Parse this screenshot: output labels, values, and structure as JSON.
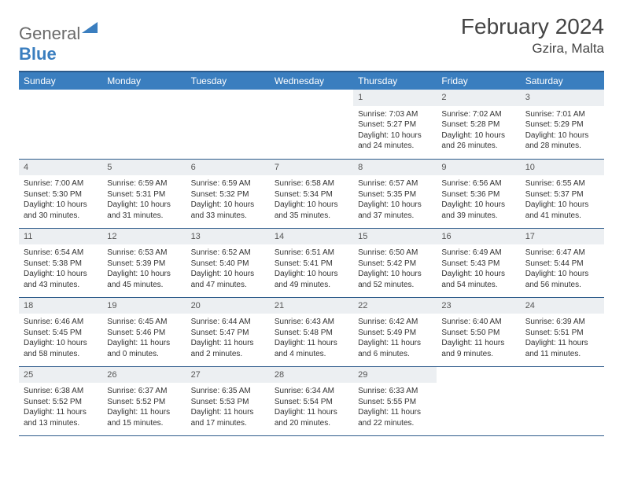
{
  "brand": {
    "name_a": "General",
    "name_b": "Blue"
  },
  "title": "February 2024",
  "location": "Gzira, Malta",
  "colors": {
    "header_bg": "#3a7ebf",
    "header_border": "#2c5a8a",
    "daynum_bg": "#eceff2",
    "text": "#333333",
    "logo_gray": "#6a6a6a"
  },
  "day_headers": [
    "Sunday",
    "Monday",
    "Tuesday",
    "Wednesday",
    "Thursday",
    "Friday",
    "Saturday"
  ],
  "weeks": [
    [
      null,
      null,
      null,
      null,
      {
        "n": "1",
        "sr": "7:03 AM",
        "ss": "5:27 PM",
        "dl": "10 hours and 24 minutes."
      },
      {
        "n": "2",
        "sr": "7:02 AM",
        "ss": "5:28 PM",
        "dl": "10 hours and 26 minutes."
      },
      {
        "n": "3",
        "sr": "7:01 AM",
        "ss": "5:29 PM",
        "dl": "10 hours and 28 minutes."
      }
    ],
    [
      {
        "n": "4",
        "sr": "7:00 AM",
        "ss": "5:30 PM",
        "dl": "10 hours and 30 minutes."
      },
      {
        "n": "5",
        "sr": "6:59 AM",
        "ss": "5:31 PM",
        "dl": "10 hours and 31 minutes."
      },
      {
        "n": "6",
        "sr": "6:59 AM",
        "ss": "5:32 PM",
        "dl": "10 hours and 33 minutes."
      },
      {
        "n": "7",
        "sr": "6:58 AM",
        "ss": "5:34 PM",
        "dl": "10 hours and 35 minutes."
      },
      {
        "n": "8",
        "sr": "6:57 AM",
        "ss": "5:35 PM",
        "dl": "10 hours and 37 minutes."
      },
      {
        "n": "9",
        "sr": "6:56 AM",
        "ss": "5:36 PM",
        "dl": "10 hours and 39 minutes."
      },
      {
        "n": "10",
        "sr": "6:55 AM",
        "ss": "5:37 PM",
        "dl": "10 hours and 41 minutes."
      }
    ],
    [
      {
        "n": "11",
        "sr": "6:54 AM",
        "ss": "5:38 PM",
        "dl": "10 hours and 43 minutes."
      },
      {
        "n": "12",
        "sr": "6:53 AM",
        "ss": "5:39 PM",
        "dl": "10 hours and 45 minutes."
      },
      {
        "n": "13",
        "sr": "6:52 AM",
        "ss": "5:40 PM",
        "dl": "10 hours and 47 minutes."
      },
      {
        "n": "14",
        "sr": "6:51 AM",
        "ss": "5:41 PM",
        "dl": "10 hours and 49 minutes."
      },
      {
        "n": "15",
        "sr": "6:50 AM",
        "ss": "5:42 PM",
        "dl": "10 hours and 52 minutes."
      },
      {
        "n": "16",
        "sr": "6:49 AM",
        "ss": "5:43 PM",
        "dl": "10 hours and 54 minutes."
      },
      {
        "n": "17",
        "sr": "6:47 AM",
        "ss": "5:44 PM",
        "dl": "10 hours and 56 minutes."
      }
    ],
    [
      {
        "n": "18",
        "sr": "6:46 AM",
        "ss": "5:45 PM",
        "dl": "10 hours and 58 minutes."
      },
      {
        "n": "19",
        "sr": "6:45 AM",
        "ss": "5:46 PM",
        "dl": "11 hours and 0 minutes."
      },
      {
        "n": "20",
        "sr": "6:44 AM",
        "ss": "5:47 PM",
        "dl": "11 hours and 2 minutes."
      },
      {
        "n": "21",
        "sr": "6:43 AM",
        "ss": "5:48 PM",
        "dl": "11 hours and 4 minutes."
      },
      {
        "n": "22",
        "sr": "6:42 AM",
        "ss": "5:49 PM",
        "dl": "11 hours and 6 minutes."
      },
      {
        "n": "23",
        "sr": "6:40 AM",
        "ss": "5:50 PM",
        "dl": "11 hours and 9 minutes."
      },
      {
        "n": "24",
        "sr": "6:39 AM",
        "ss": "5:51 PM",
        "dl": "11 hours and 11 minutes."
      }
    ],
    [
      {
        "n": "25",
        "sr": "6:38 AM",
        "ss": "5:52 PM",
        "dl": "11 hours and 13 minutes."
      },
      {
        "n": "26",
        "sr": "6:37 AM",
        "ss": "5:52 PM",
        "dl": "11 hours and 15 minutes."
      },
      {
        "n": "27",
        "sr": "6:35 AM",
        "ss": "5:53 PM",
        "dl": "11 hours and 17 minutes."
      },
      {
        "n": "28",
        "sr": "6:34 AM",
        "ss": "5:54 PM",
        "dl": "11 hours and 20 minutes."
      },
      {
        "n": "29",
        "sr": "6:33 AM",
        "ss": "5:55 PM",
        "dl": "11 hours and 22 minutes."
      },
      null,
      null
    ]
  ],
  "labels": {
    "sunrise": "Sunrise:",
    "sunset": "Sunset:",
    "daylight": "Daylight:"
  }
}
